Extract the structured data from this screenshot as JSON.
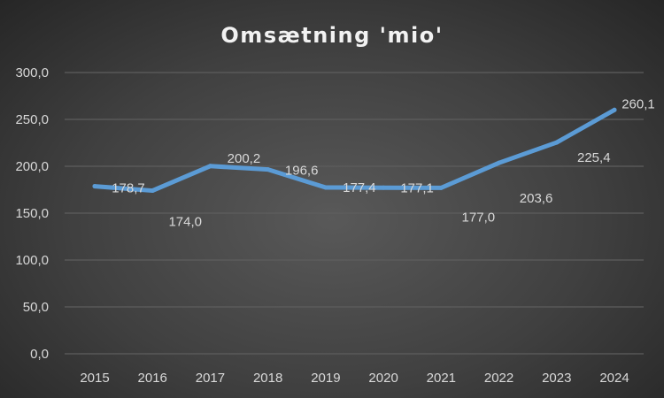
{
  "chart_data": {
    "type": "line",
    "title": "Omsætning 'mio'",
    "xlabel": "",
    "ylabel": "",
    "categories": [
      "2015",
      "2016",
      "2017",
      "2018",
      "2019",
      "2020",
      "2021",
      "2022",
      "2023",
      "2024"
    ],
    "series": [
      {
        "values": [
          178.7,
          174.0,
          200.2,
          196.6,
          177.4,
          177.1,
          177.0,
          203.6,
          225.4,
          260.1
        ]
      }
    ],
    "data_labels": [
      "178,7",
      "174,0",
      "200,2",
      "196,6",
      "177,4",
      "177,1",
      "177,0",
      "203,6",
      "225,4",
      "260,1"
    ],
    "yticks": [
      "0,0",
      "50,0",
      "100,0",
      "150,0",
      "200,0",
      "250,0",
      "300,0"
    ],
    "ylim": [
      0,
      300
    ],
    "grid": true,
    "legend": "none",
    "line_color": "#5b9bd5",
    "background": "#404040"
  }
}
